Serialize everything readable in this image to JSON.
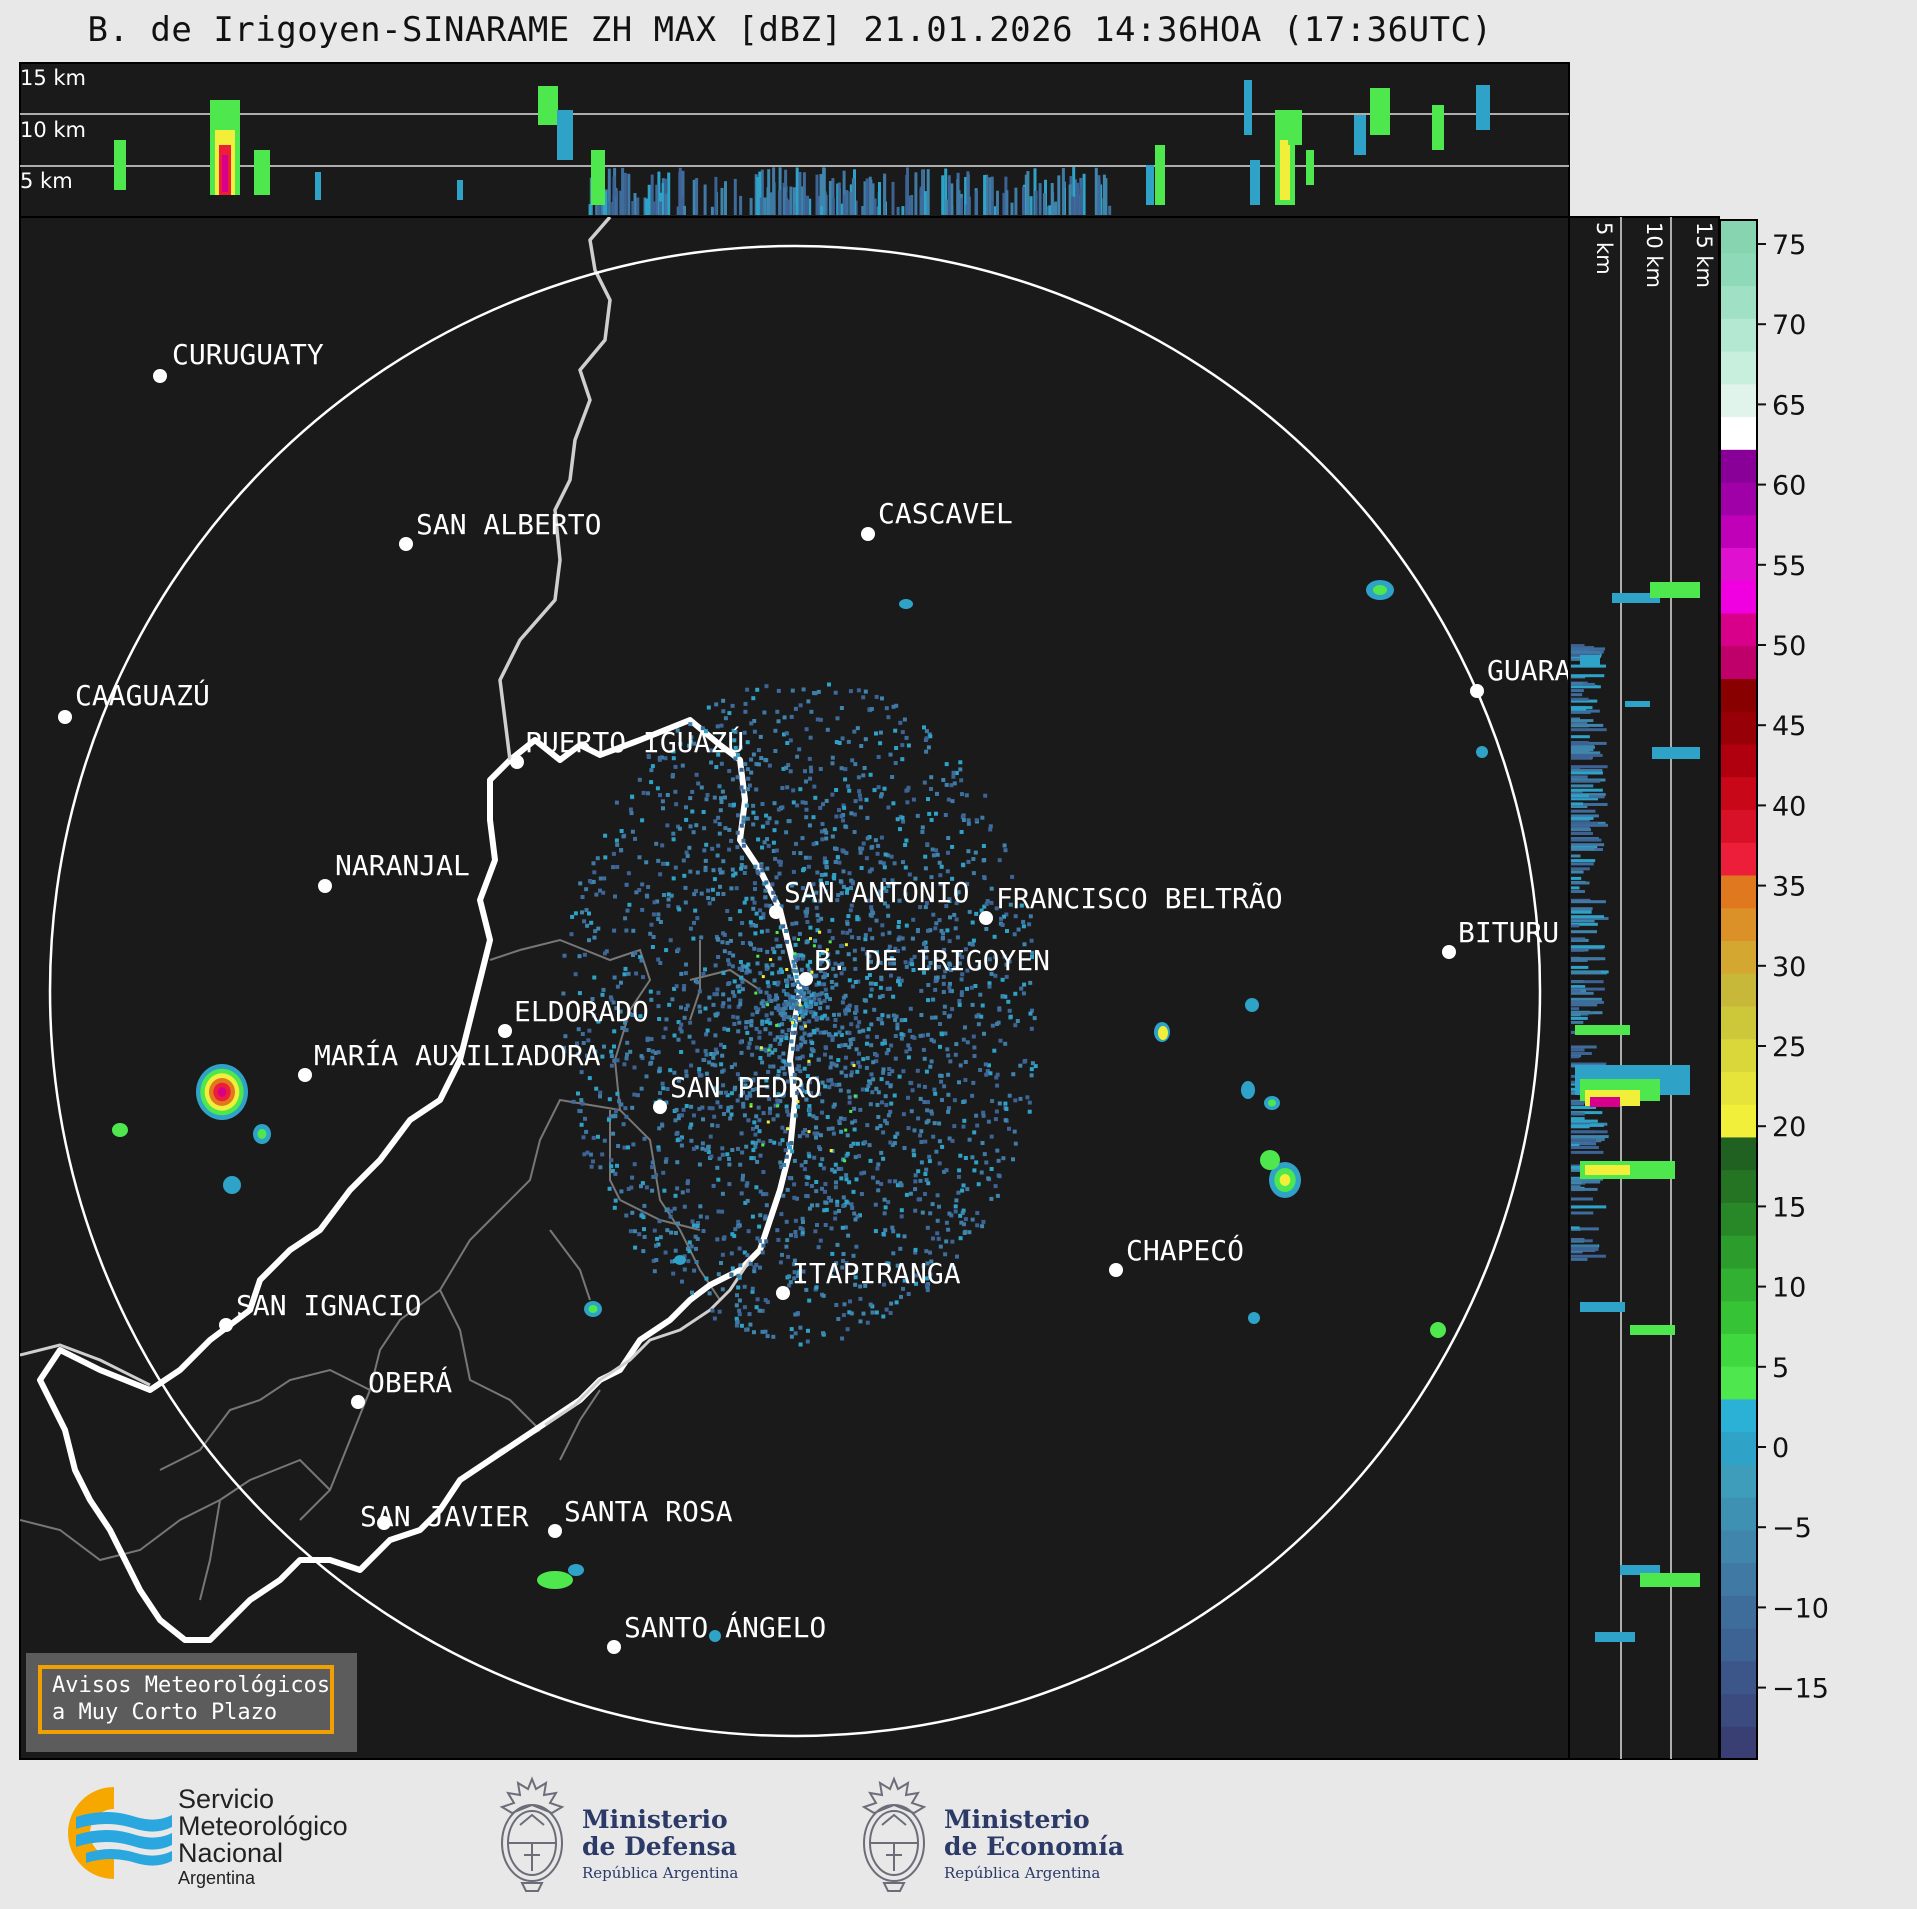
{
  "title": "B. de Irigoyen-SINARAME ZH MAX [dBZ] 21.01.2026 14:36HOA (17:36UTC)",
  "top_panel": {
    "altitude_labels": [
      "15 km",
      "10 km",
      "5 km"
    ]
  },
  "side_panel": {
    "altitude_labels": [
      "5 km",
      "10 km",
      "15 km"
    ]
  },
  "colorbar": {
    "ticks": [
      "75",
      "70",
      "65",
      "60",
      "55",
      "50",
      "45",
      "40",
      "35",
      "30",
      "25",
      "20",
      "15",
      "10",
      "5",
      "0",
      "−5",
      "−10",
      "−15"
    ],
    "colors": [
      "#3a3f73",
      "#3b4b80",
      "#3c568a",
      "#3d6294",
      "#3e6d9c",
      "#3f79a4",
      "#3f85ac",
      "#3f91b4",
      "#3f9dbc",
      "#2ea3c7",
      "#2bb0d6",
      "#4ee84e",
      "#3fd83f",
      "#36c436",
      "#31b031",
      "#2c9c2c",
      "#288828",
      "#247424",
      "#206020",
      "#f2ef3a",
      "#e6e33a",
      "#d9d73a",
      "#ccc83a",
      "#c8b83a",
      "#d4a830",
      "#dc9028",
      "#e07820",
      "#ec1e3a",
      "#d81028",
      "#c80818",
      "#b00010",
      "#980008",
      "#880000",
      "#c0006a",
      "#d8008a",
      "#f000e0",
      "#e010d0",
      "#c000b8",
      "#a000a8",
      "#880098",
      "#ffffff",
      "#e0f4ec",
      "#c8eedd",
      "#b4e8d2",
      "#a0e0c4",
      "#8edab8",
      "#86d4b0"
    ]
  },
  "cities": [
    {
      "name": "CURUGUATY"
    },
    {
      "name": "SAN ALBERTO"
    },
    {
      "name": "CASCAVEL"
    },
    {
      "name": "CAAGUAZÚ"
    },
    {
      "name": "GUARA"
    },
    {
      "name": "PUERTO IGUAZÚ"
    },
    {
      "name": "NARANJAL"
    },
    {
      "name": "SAN ANTONIO"
    },
    {
      "name": "FRANCISCO BELTRÃO"
    },
    {
      "name": "BITURU"
    },
    {
      "name": "B. DE IRIGOYEN"
    },
    {
      "name": "ELDORADO"
    },
    {
      "name": "MARÍA AUXILIADORA"
    },
    {
      "name": "SAN PEDRO"
    },
    {
      "name": "CHAPECÓ"
    },
    {
      "name": "ITAPIRANGA"
    },
    {
      "name": "SAN IGNACIO"
    },
    {
      "name": "OBERÁ"
    },
    {
      "name": "SAN JAVIER"
    },
    {
      "name": "SANTA ROSA"
    },
    {
      "name": "SANTO ÁNGELO"
    }
  ],
  "warning": {
    "line1": "Avisos Meteorológicos",
    "line2": "a Muy Corto Plazo"
  },
  "logos": {
    "smn": {
      "line1": "Servicio",
      "line2": "Meteorológico",
      "line3": "Nacional",
      "line4": "Argentina"
    },
    "defensa": {
      "line1": "Ministerio",
      "line2": "de Defensa",
      "line3": "República Argentina"
    },
    "economia": {
      "line1": "Ministerio",
      "line2": "de Economía",
      "line3": "República Argentina"
    }
  },
  "colors": {
    "panel_bg": "#1a1a1a",
    "page_bg": "#e8e8e8",
    "accent": "#f0a000"
  }
}
